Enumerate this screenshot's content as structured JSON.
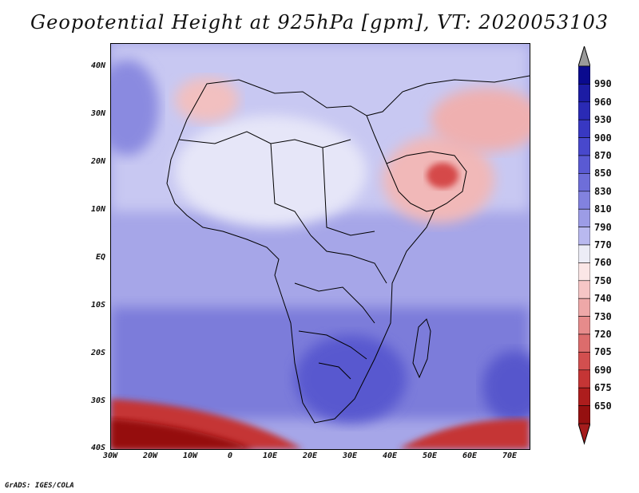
{
  "title": "Geopotential Height at 925hPa [gpm], VT: 2020053103",
  "footer": "GrADS: IGES/COLA",
  "map": {
    "region": "Africa and Arabian Peninsula",
    "lon_range": [
      -30,
      75
    ],
    "lat_range": [
      -40,
      45
    ],
    "lat_ticks": [
      "40N",
      "30N",
      "20N",
      "10N",
      "EQ",
      "10S",
      "20S",
      "30S",
      "40S"
    ],
    "lon_ticks": [
      "30W",
      "20W",
      "10W",
      "0",
      "10E",
      "20E",
      "30E",
      "40E",
      "50E",
      "60E",
      "70E"
    ]
  },
  "colorbar": {
    "labels": [
      "990",
      "960",
      "930",
      "900",
      "870",
      "850",
      "830",
      "810",
      "790",
      "770",
      "760",
      "750",
      "740",
      "730",
      "720",
      "705",
      "690",
      "675",
      "650"
    ],
    "colors": [
      "#0a0a8e",
      "#1c1ca4",
      "#2a2ab5",
      "#3838c2",
      "#4848cc",
      "#5a5ad3",
      "#6e6ed9",
      "#8282df",
      "#9c9ce6",
      "#b9b9ef",
      "#ececf6",
      "#fbe6e6",
      "#f6c6c6",
      "#eea8a8",
      "#e68b8b",
      "#dc6c6c",
      "#d24f4f",
      "#c53535",
      "#ad1d1d",
      "#951010"
    ],
    "top_triangle_color": "#9a9a9a",
    "bottom_triangle_color": "#a51c1c"
  },
  "colors": {
    "low_heights": "#c53535",
    "high_heights": "#3838c2",
    "land_outline": "#000000"
  }
}
